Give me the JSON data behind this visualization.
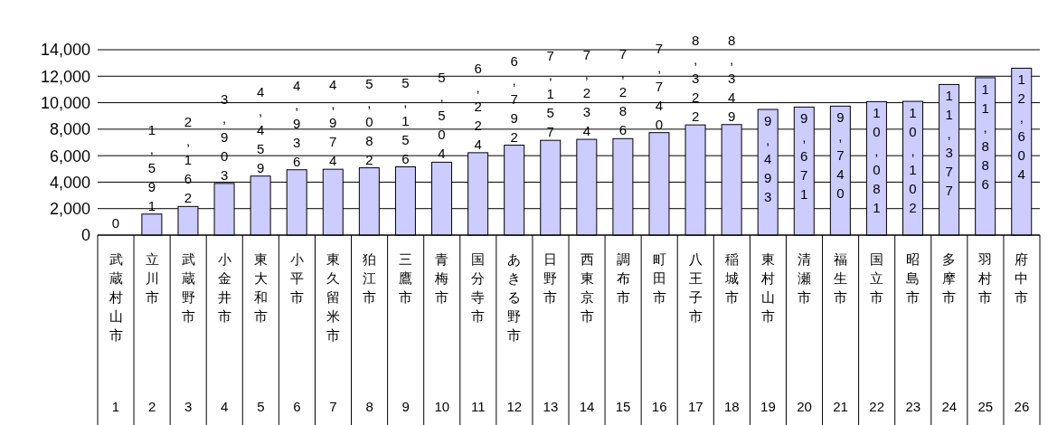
{
  "chart_data": {
    "type": "bar",
    "categories": [
      "武蔵村山市",
      "立川市",
      "武蔵野市",
      "小金井市",
      "東大和市",
      "小平市",
      "東久留米市",
      "狛江市",
      "三鷹市",
      "青梅市",
      "国分寺市",
      "あきる野市",
      "日野市",
      "西東京市",
      "調布市",
      "町田市",
      "八王子市",
      "稲城市",
      "東村山市",
      "清瀬市",
      "福生市",
      "国立市",
      "昭島市",
      "多摩市",
      "羽村市",
      "府中市"
    ],
    "values": [
      0,
      1591,
      2162,
      3903,
      4459,
      4936,
      4974,
      5082,
      5156,
      5504,
      6224,
      6792,
      7157,
      7234,
      7286,
      7740,
      8322,
      8349,
      9493,
      9671,
      9740,
      10081,
      10102,
      11377,
      11886,
      12604
    ],
    "color": "#ccccff",
    "ylim": [
      0,
      14000
    ],
    "yticks": [
      0,
      {
        "value": 2000,
        "label": "2,000"
      },
      {
        "value": 4000,
        "label": "4,000"
      },
      {
        "value": 6000,
        "label": "6,000"
      },
      {
        "value": 8000,
        "label": "8,000"
      },
      {
        "value": 10000,
        "label": "10,000"
      },
      {
        "value": 12000,
        "label": "12,000"
      },
      {
        "value": 14000,
        "label": "14,000"
      }
    ],
    "grid": "y",
    "legend": false,
    "value_labels": [
      "0",
      "1,591",
      "2,162",
      "3,903",
      "4,459",
      "4,936",
      "4,974",
      "5,082",
      "5,156",
      "5,504",
      "6,224",
      "6,792",
      "7,157",
      "7,234",
      "7,286",
      "7,740",
      "8,322",
      "8,349",
      "9,493",
      "9,671",
      "9,740",
      "10,081",
      "10,102",
      "11,377",
      "11,886",
      "12,604"
    ],
    "annotations": [
      "1",
      "2",
      "3",
      "4",
      "5",
      "6",
      "7",
      "8",
      "9",
      "10",
      "11",
      "12",
      "13",
      "14",
      "15",
      "16",
      "17",
      "18",
      "19",
      "20",
      "21",
      "22",
      "23",
      "24",
      "25",
      "26"
    ]
  }
}
